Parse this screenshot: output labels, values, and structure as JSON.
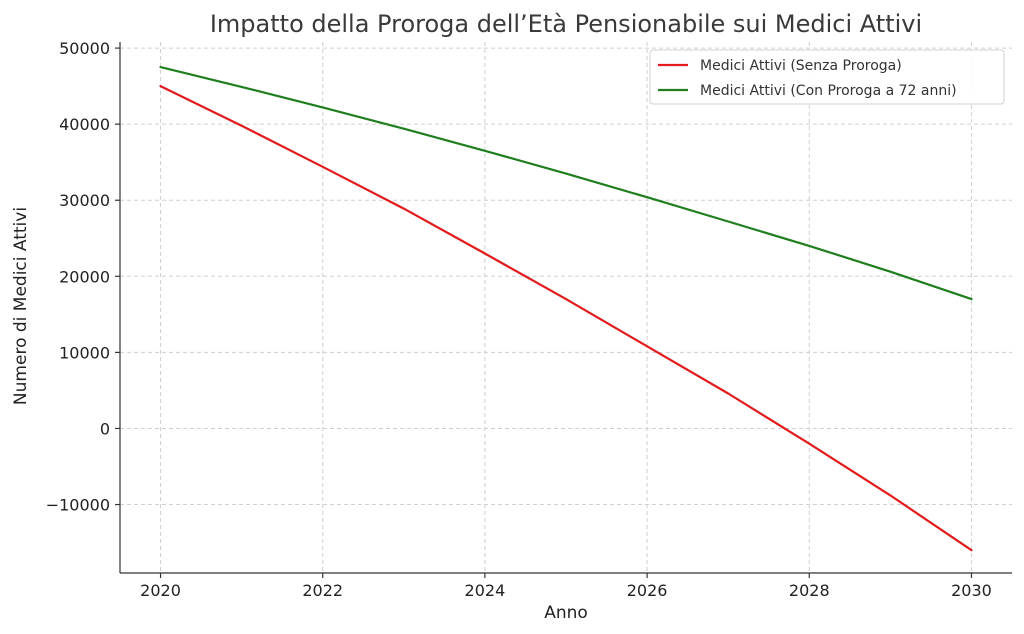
{
  "chart_data": {
    "type": "line",
    "title": "Impatto della Proroga dell’Età Pensionabile sui Medici Attivi",
    "xlabel": "Anno",
    "ylabel": "Numero di Medici Attivi",
    "x": [
      2020,
      2021,
      2022,
      2023,
      2024,
      2025,
      2026,
      2027,
      2028,
      2029,
      2030
    ],
    "xlim": [
      2019.5,
      2030.5
    ],
    "ylim": [
      -19000,
      50800
    ],
    "xticks": [
      2020,
      2022,
      2024,
      2026,
      2028,
      2030
    ],
    "yticks": [
      -10000,
      0,
      10000,
      20000,
      30000,
      40000,
      50000
    ],
    "xtick_labels": [
      "2020",
      "2022",
      "2024",
      "2026",
      "2028",
      "2030"
    ],
    "ytick_labels": [
      "−10000",
      "0",
      "10000",
      "20000",
      "30000",
      "40000",
      "50000"
    ],
    "grid": true,
    "legend_position": "top-right",
    "series": [
      {
        "name": "Medici Attivi (Senza Proroga)",
        "color": "#e31a1c",
        "values": [
          45000,
          39800,
          34400,
          28900,
          23000,
          17000,
          10800,
          4600,
          -2000,
          -8800,
          -16000
        ]
      },
      {
        "name": "Medici Attivi (Con Proroga a 72 anni)",
        "color": "#1f7f1f",
        "values": [
          47500,
          44900,
          42200,
          39400,
          36500,
          33500,
          30400,
          27200,
          24000,
          20600,
          17000
        ]
      }
    ]
  }
}
